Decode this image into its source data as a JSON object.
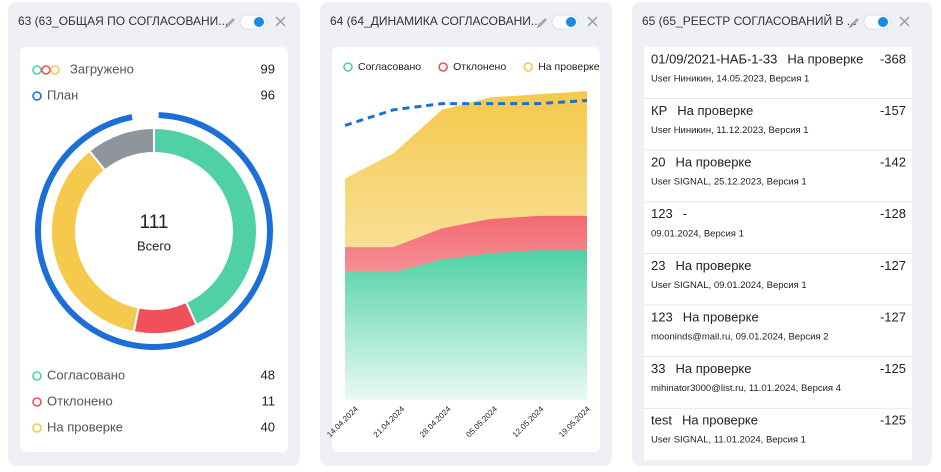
{
  "widgets": [
    {
      "title": "63 (63_ОБЩАЯ ПО СОГЛАСОВАНИ..."
    },
    {
      "title": "64 (64_ДИНАМИКА СОГЛАСОВАНИ..."
    },
    {
      "title": "65 (65_РЕЕСТР СОГЛАСОВАНИЙ В ...",
      "items": [
        {
          "name": "01/09/2021-НАБ-1-33",
          "status": "На проверке",
          "meta": "User Ниникин, 14.05.2023, Версия 1",
          "value": -368
        },
        {
          "name": "КР",
          "status": "На проверке",
          "meta": "User Ниникин, 11.12.2023, Версия 1",
          "value": -157
        },
        {
          "name": "20",
          "status": "На проверке",
          "meta": "User SIGNAL, 25.12.2023, Версия 1",
          "value": -142
        },
        {
          "name": "123",
          "status": "-",
          "meta": "09.01.2024, Версия 1",
          "value": -128
        },
        {
          "name": "23",
          "status": "На проверке",
          "meta": "User SIGNAL, 09.01.2024, Версия 1",
          "value": -127
        },
        {
          "name": "123",
          "status": "На проверке",
          "meta": "mooninds@mail.ru, 09.01.2024, Версия 2",
          "value": -127
        },
        {
          "name": "33",
          "status": "На проверке",
          "meta": "mihinator3000@list.ru, 11.01.2024, Версия 4",
          "value": -125
        },
        {
          "name": "test",
          "status": "На проверке",
          "meta": "User SIGNAL, 11.01.2024, Версия 1",
          "value": -125
        }
      ]
    }
  ],
  "chart_data": [
    {
      "type": "donut",
      "loaded": {
        "name": "Загружено",
        "value": 99
      },
      "plan": {
        "name": "План",
        "value": 96,
        "color": "#1b6fd6"
      },
      "total": 111,
      "total_label": "Всего",
      "series": [
        {
          "name": "Согласовано",
          "color": "#4fd1a5",
          "value": 48
        },
        {
          "name": "Отклонено",
          "color": "#f0505a",
          "value": 11
        },
        {
          "name": "На проверке",
          "color": "#f4c94c",
          "value": 40
        },
        {
          "name": null,
          "color": "#8e959d",
          "value": 12
        }
      ]
    },
    {
      "type": "stacked-area",
      "categories": [
        "14.04.2024",
        "21.04.2024",
        "28.04.2024",
        "05.05.2024",
        "12.05.2024",
        "19.05.2024"
      ],
      "ylim": [
        0,
        100
      ],
      "series": [
        {
          "name": "Согласовано",
          "color": "#4fd1a5",
          "values": [
            41,
            41,
            45,
            47,
            48,
            48
          ]
        },
        {
          "name": "Отклонено",
          "color": "#f0505a",
          "values": [
            8,
            8,
            10,
            11,
            11,
            11
          ]
        },
        {
          "name": "На проверке",
          "color": "#f4c94c",
          "values": [
            22,
            30,
            38,
            39,
            39,
            40
          ]
        }
      ],
      "plan_line": {
        "color": "#1b6fd6",
        "values": [
          88,
          93,
          95,
          95,
          95,
          96
        ]
      }
    }
  ]
}
